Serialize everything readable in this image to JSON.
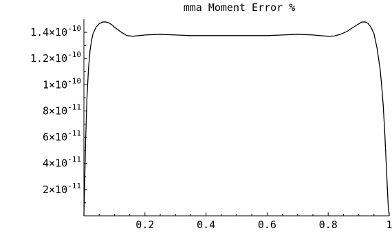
{
  "chart_data": {
    "type": "line",
    "title": "mma Moment Error %",
    "xlabel": "",
    "ylabel": "",
    "xlim": [
      0,
      1
    ],
    "ylim": [
      0,
      1.5e-10
    ],
    "grid": false,
    "x_ticks": [
      {
        "value": 0.2,
        "label": "0.2"
      },
      {
        "value": 0.4,
        "label": "0.4"
      },
      {
        "value": 0.6,
        "label": "0.6"
      },
      {
        "value": 0.8,
        "label": "0.8"
      },
      {
        "value": 1.0,
        "label": "1"
      }
    ],
    "y_ticks": [
      {
        "value": 2e-11,
        "mantissa": "2",
        "exponent": "-11"
      },
      {
        "value": 4e-11,
        "mantissa": "4",
        "exponent": "-11"
      },
      {
        "value": 6e-11,
        "mantissa": "6",
        "exponent": "-11"
      },
      {
        "value": 8e-11,
        "mantissa": "8",
        "exponent": "-11"
      },
      {
        "value": 1e-10,
        "mantissa": "1",
        "exponent": "-10"
      },
      {
        "value": 1.2e-10,
        "mantissa": "1.2",
        "exponent": "-10"
      },
      {
        "value": 1.4e-10,
        "mantissa": "1.4",
        "exponent": "-10"
      }
    ],
    "times_symbol": "×10",
    "series": [
      {
        "x": [
          0.0,
          0.003,
          0.006,
          0.01,
          0.015,
          0.02,
          0.025,
          0.03,
          0.04,
          0.05,
          0.06,
          0.07,
          0.08,
          0.09,
          0.1,
          0.12,
          0.14,
          0.16,
          0.18,
          0.2,
          0.25,
          0.3,
          0.35,
          0.4,
          0.45,
          0.5,
          0.55,
          0.6,
          0.65,
          0.7,
          0.75,
          0.8,
          0.82,
          0.84,
          0.86,
          0.88,
          0.9,
          0.91,
          0.92,
          0.93,
          0.94,
          0.95,
          0.96,
          0.97,
          0.975,
          0.98,
          0.985,
          0.99,
          0.994,
          0.997,
          1.0
        ],
        "y": [
          0.0,
          3e-11,
          6e-11,
          9e-11,
          1.12e-10,
          1.26e-10,
          1.34e-10,
          1.39e-10,
          1.44e-10,
          1.465e-10,
          1.478e-10,
          1.48e-10,
          1.474e-10,
          1.46e-10,
          1.44e-10,
          1.405e-10,
          1.376e-10,
          1.37e-10,
          1.375e-10,
          1.38e-10,
          1.385e-10,
          1.38e-10,
          1.375e-10,
          1.375e-10,
          1.375e-10,
          1.375e-10,
          1.375e-10,
          1.375e-10,
          1.38e-10,
          1.385e-10,
          1.38e-10,
          1.37e-10,
          1.372e-10,
          1.385e-10,
          1.405e-10,
          1.435e-10,
          1.465e-10,
          1.478e-10,
          1.48e-10,
          1.47e-10,
          1.44e-10,
          1.39e-10,
          1.28e-10,
          1.12e-10,
          1e-10,
          8.5e-11,
          6.5e-11,
          4e-11,
          2e-11,
          6e-12,
          0.0
        ]
      }
    ]
  }
}
